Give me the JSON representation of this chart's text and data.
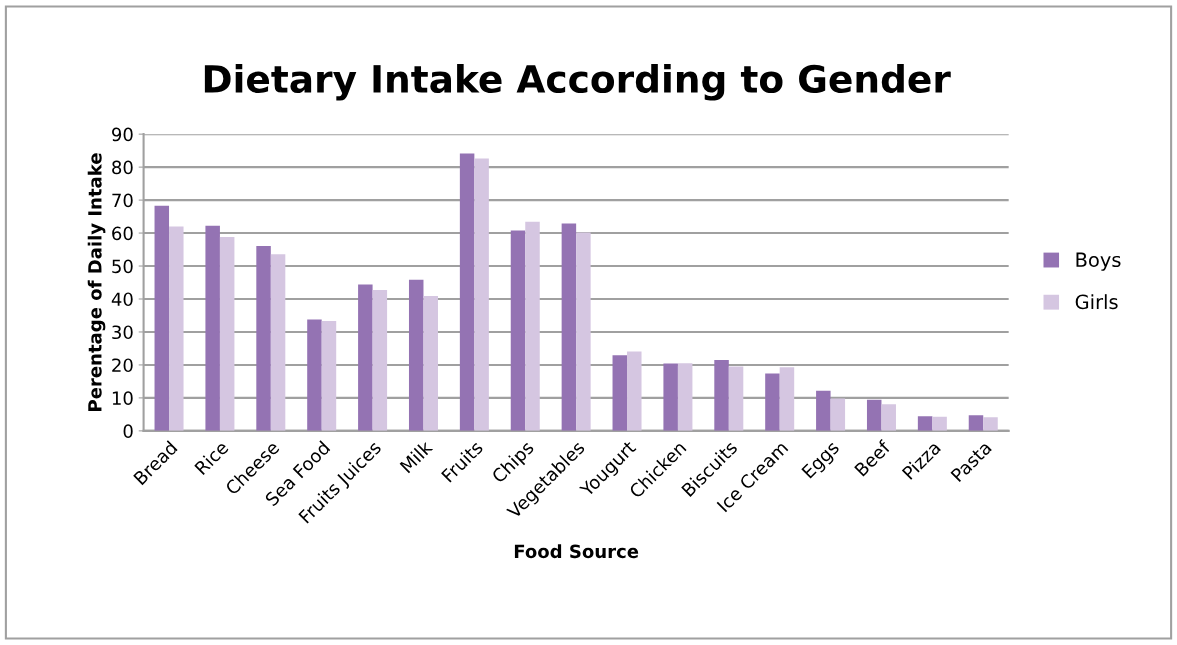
{
  "chart_data": {
    "type": "bar",
    "title": "Dietary Intake According to Gender",
    "xlabel": "Food Source",
    "ylabel": "Perentage of Daily Intake",
    "categories": [
      "Bread",
      "Rice",
      "Cheese",
      "Sea Food",
      "Fruits Juices",
      "Milk",
      "Fruits",
      "Chips",
      "Vegetables",
      "Yougurt",
      "Chicken",
      "Biscuits",
      "Ice Cream",
      "Eggs",
      "Beef",
      "Pizza",
      "Pasta"
    ],
    "series": [
      {
        "name": "Boys",
        "color": "#9473b3",
        "values": [
          68.3,
          62.2,
          56.1,
          33.8,
          44.4,
          45.8,
          84.1,
          60.8,
          62.9,
          22.9,
          20.4,
          21.5,
          17.4,
          12.2,
          9.4,
          4.4,
          4.7
        ]
      },
      {
        "name": "Girls",
        "color": "#d5c6e1",
        "values": [
          62.0,
          58.8,
          53.6,
          33.3,
          42.7,
          40.9,
          82.6,
          63.4,
          60.2,
          24.1,
          20.5,
          19.5,
          19.3,
          9.8,
          8.1,
          4.3,
          4.1
        ]
      }
    ],
    "ylim": [
      0,
      90
    ],
    "yticks": [
      0,
      10,
      20,
      30,
      40,
      50,
      60,
      70,
      80,
      90
    ],
    "grid": "y",
    "legend": "right"
  }
}
